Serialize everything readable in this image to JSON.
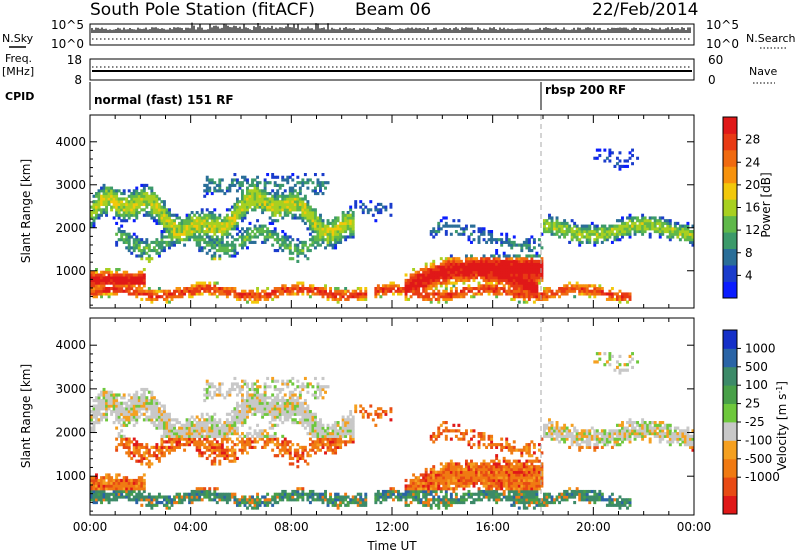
{
  "header": {
    "title": "South Pole Station (fitACF)",
    "beam": "Beam 06",
    "date": "22/Feb/2014"
  },
  "info_panels": {
    "nsky": {
      "label": "N.Sky",
      "left_ticks": [
        "10^5",
        "10^0"
      ],
      "right_ticks": [
        "10^5",
        "10^0"
      ],
      "right_label": "N.Search"
    },
    "freq": {
      "label_line1": "Freq.",
      "label_line2": "[MHz]",
      "left_ticks": [
        "18",
        "8"
      ],
      "right_ticks": [
        "60",
        "0"
      ],
      "right_label": "Nave"
    },
    "cpid": {
      "label": "CPID",
      "modes": [
        {
          "text": "normal (fast) 151 RF",
          "start_hour": 0
        },
        {
          "text": "rbsp 200 RF",
          "start_hour": 18
        }
      ]
    }
  },
  "chart_data": [
    {
      "type": "heatmap",
      "name": "power",
      "xlabel": "",
      "ylabel": "Slant Range [km]",
      "xlim": [
        0,
        24
      ],
      "ylim": [
        180,
        4600
      ],
      "y_ticks": [
        "1000",
        "2000",
        "3000",
        "4000"
      ],
      "colorbar": {
        "label": "Power [dB]",
        "ticks": [
          "4",
          "8",
          "12",
          "16",
          "20",
          "24",
          "28"
        ],
        "colors": [
          "#0a1cff",
          "#1a3ccc",
          "#2a6e98",
          "#3c9a6a",
          "#5fb84a",
          "#a8d020",
          "#f2c80a",
          "#f7920c",
          "#f06a10",
          "#e83a14",
          "#e01818"
        ]
      },
      "dashed_line_hour": 18
    },
    {
      "type": "heatmap",
      "name": "velocity",
      "xlabel": "Time UT",
      "ylabel": "Slant Range [km]",
      "xlim": [
        0,
        24
      ],
      "ylim": [
        180,
        4600
      ],
      "x_ticks": [
        "00:00",
        "04:00",
        "08:00",
        "12:00",
        "16:00",
        "20:00",
        "00:00"
      ],
      "y_ticks": [
        "1000",
        "2000",
        "3000",
        "4000"
      ],
      "colorbar": {
        "label": "Velocity [m s",
        "label_sup": "-1",
        "label_end": "]",
        "ticks": [
          "1000",
          "500",
          "100",
          "25",
          "-25",
          "-100",
          "-500",
          "-1000"
        ],
        "colors": [
          "#1530c8",
          "#2a64a6",
          "#3c8a68",
          "#48a048",
          "#6ec83c",
          "#c8c8c8",
          "#f5a020",
          "#f07a12",
          "#e84a14",
          "#e01818"
        ]
      },
      "dashed_line_hour": 18
    }
  ]
}
